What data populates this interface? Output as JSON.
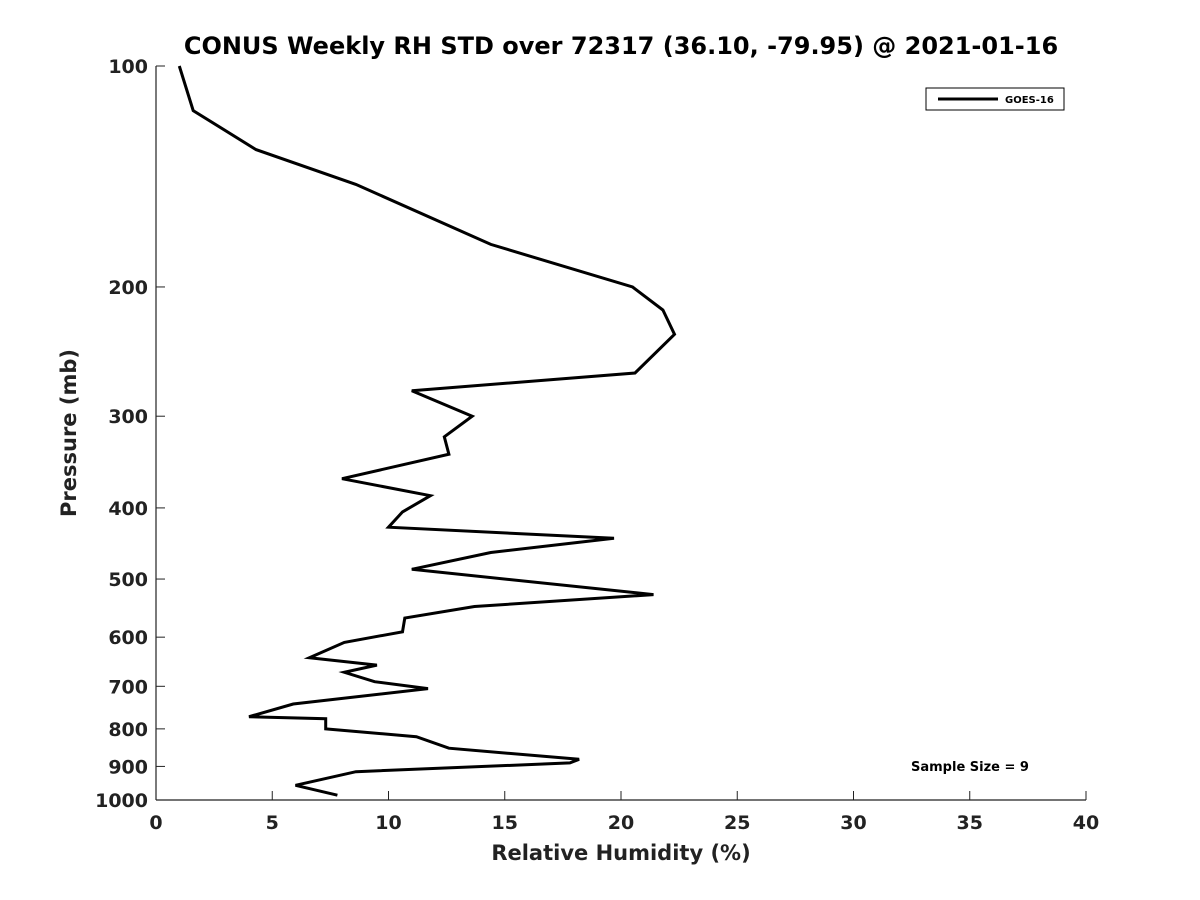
{
  "chart_data": {
    "type": "line",
    "title": "CONUS Weekly RH STD over 72317 (36.10, -79.95) @ 2021-01-16",
    "xlabel": "Relative Humidity (%)",
    "ylabel": "Pressure (mb)",
    "xlim": [
      0,
      40
    ],
    "ylim": [
      100,
      1000
    ],
    "y_scale": "log",
    "y_reversed": true,
    "grid": false,
    "legend_position": "top-right",
    "x_ticks": [
      "0",
      "5",
      "10",
      "15",
      "20",
      "25",
      "30",
      "35",
      "40"
    ],
    "y_ticks": [
      "100",
      "200",
      "300",
      "400",
      "500",
      "600",
      "700",
      "800",
      "900",
      "1000"
    ],
    "series": [
      {
        "name": "GOES-16",
        "color": "#000000",
        "x": [
          1.0,
          1.6,
          4.3,
          8.6,
          14.4,
          20.5,
          21.8,
          22.3,
          20.6,
          11.0,
          13.6,
          12.4,
          12.6,
          8.0,
          11.8,
          10.6,
          10.0,
          19.7,
          14.4,
          11.0,
          21.4,
          13.7,
          10.7,
          10.6,
          8.1,
          6.6,
          9.5,
          8.1,
          9.4,
          11.7,
          5.9,
          4.0,
          7.3,
          7.3,
          11.2,
          12.6,
          18.2,
          17.8,
          8.6,
          6.0,
          7.8
        ],
        "y": [
          100,
          115,
          130,
          145,
          175,
          200,
          215,
          232,
          262,
          277,
          300,
          320,
          338,
          365,
          385,
          405,
          425,
          440,
          460,
          485,
          525,
          545,
          565,
          590,
          610,
          640,
          655,
          670,
          690,
          705,
          740,
          770,
          775,
          800,
          820,
          850,
          880,
          890,
          915,
          955,
          985
        ]
      }
    ],
    "annotations": [
      "Sample Size = 9"
    ]
  }
}
